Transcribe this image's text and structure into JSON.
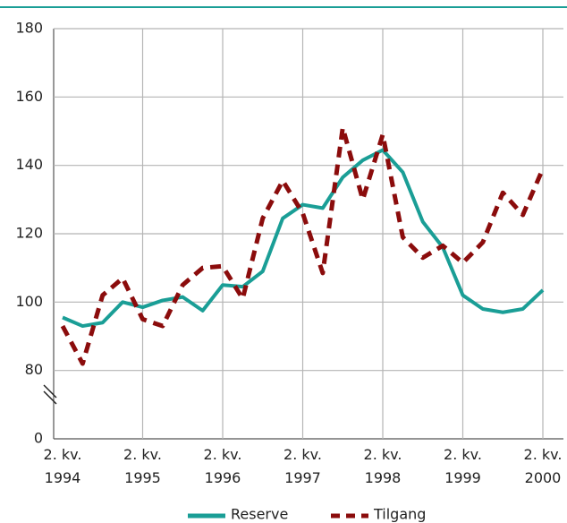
{
  "chart_data": {
    "type": "line",
    "categories": [
      "2. kv. 1994",
      null,
      null,
      null,
      "2. kv. 1995",
      null,
      null,
      null,
      "2. kv. 1996",
      null,
      null,
      null,
      "2. kv. 1997",
      null,
      null,
      null,
      "2. kv. 1998",
      null,
      null,
      null,
      "2. kv. 1999",
      null,
      null,
      null,
      "2. kv. 2000"
    ],
    "series": [
      {
        "name": "Reserve",
        "color": "#1a9e96",
        "dashed": false,
        "values": [
          95.5,
          93,
          94,
          100,
          98.5,
          100.5,
          101.5,
          97.5,
          105,
          104.5,
          109,
          124.5,
          128.5,
          127.5,
          136.5,
          141.5,
          144.5,
          138,
          123.5,
          116,
          102,
          98,
          97,
          98,
          103.5
        ]
      },
      {
        "name": "Tilgang",
        "color": "#8b0c0c",
        "dashed": true,
        "values": [
          93,
          82,
          102,
          107,
          95,
          93,
          105,
          110,
          110.5,
          101,
          124.5,
          135.5,
          126,
          108.5,
          151,
          130,
          149,
          119,
          113,
          116.5,
          111.5,
          117.5,
          132,
          125.5,
          139
        ]
      }
    ],
    "ylim": [
      0,
      180
    ],
    "yticks": [
      0,
      80,
      100,
      120,
      140,
      160,
      180
    ],
    "grid": true
  }
}
